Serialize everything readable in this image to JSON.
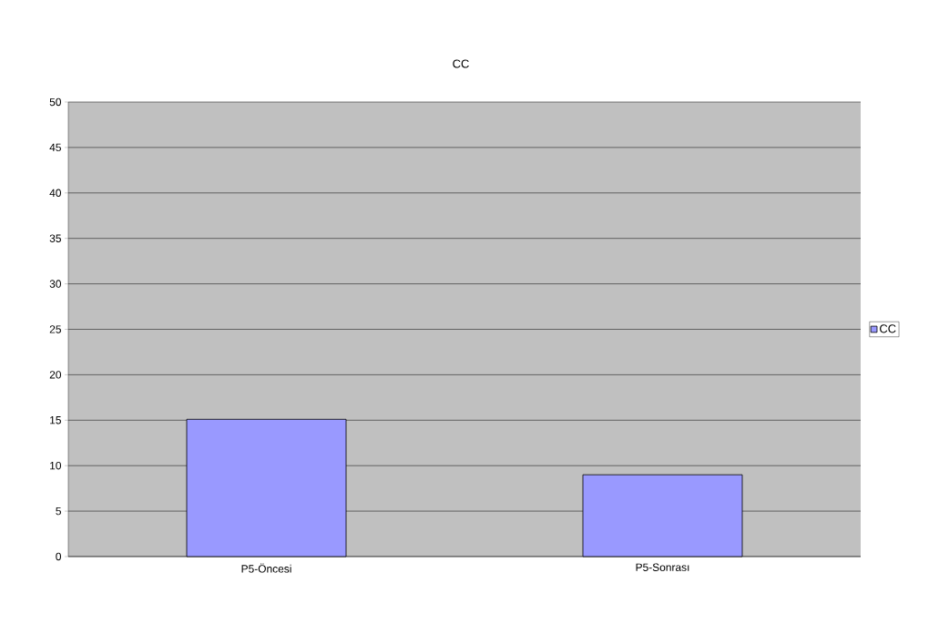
{
  "chart_data": {
    "type": "bar",
    "title": "CC",
    "categories": [
      "P5-Öncesi",
      "P5-Sonrası"
    ],
    "series": [
      {
        "name": "CC",
        "color": "#9999ff",
        "values": [
          15.1,
          9
        ]
      }
    ],
    "ylim": [
      0,
      50
    ],
    "yticks": [
      0,
      5,
      10,
      15,
      20,
      25,
      30,
      35,
      40,
      45,
      50
    ],
    "grid": "y",
    "legend": "right"
  }
}
